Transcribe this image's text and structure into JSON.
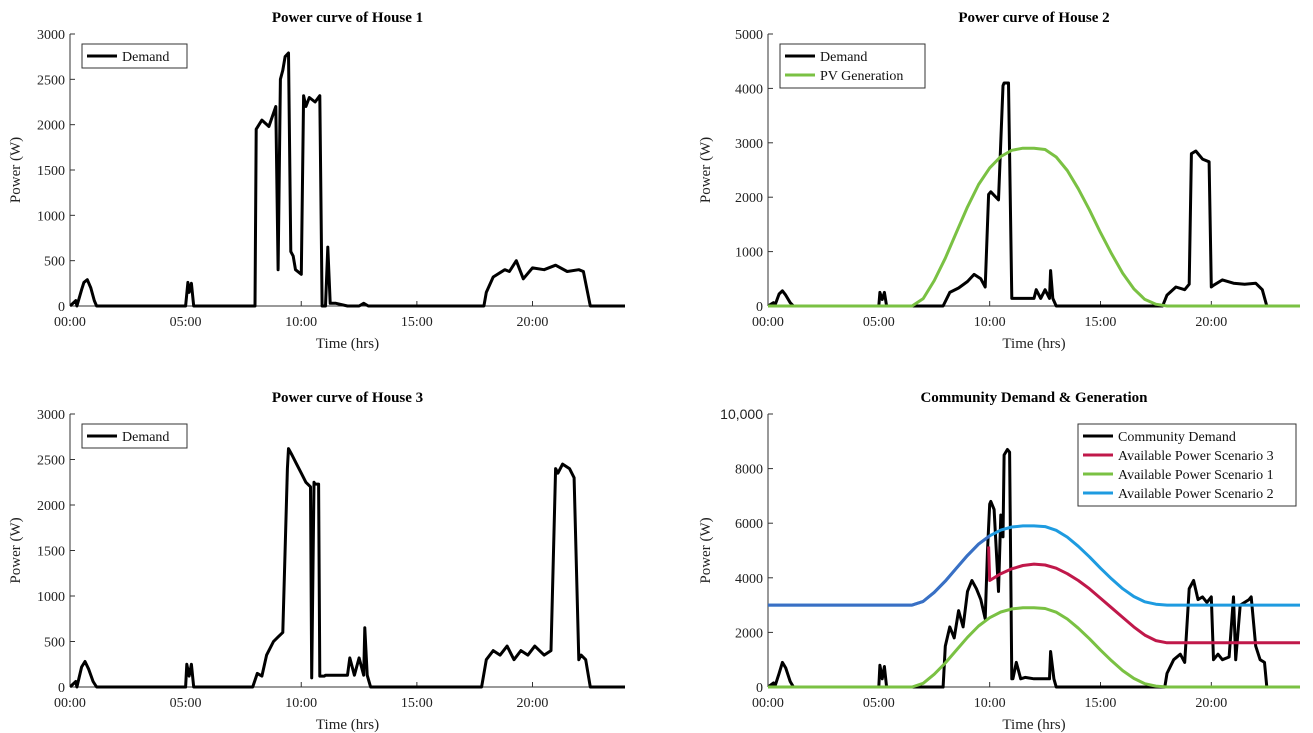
{
  "chart_data": [
    {
      "type": "line",
      "title": "Power curve of House 1",
      "xlabel": "Time (hrs)",
      "ylabel": "Power (W)",
      "xlim": [
        0,
        24
      ],
      "ylim": [
        0,
        3000
      ],
      "xticks": [
        0,
        5,
        10,
        15,
        20
      ],
      "xtick_labels": [
        "00:00",
        "05:00",
        "10:00",
        "15:00",
        "20:00"
      ],
      "yticks": [
        0,
        500,
        1000,
        1500,
        2000,
        2500,
        3000
      ],
      "ytick_labels": [
        "0",
        "500",
        "1000",
        "1500",
        "2000",
        "2500",
        "3000"
      ],
      "legend_position": "top-left",
      "series": [
        {
          "name": "Demand",
          "color": "#000000",
          "x": [
            0,
            0.25,
            0.3,
            0.5,
            0.6,
            0.75,
            0.9,
            1.05,
            1.15,
            5.0,
            5.1,
            5.15,
            5.25,
            5.35,
            5.4,
            8.0,
            8.05,
            8.3,
            8.6,
            8.9,
            9.0,
            9.1,
            9.2,
            9.3,
            9.45,
            9.55,
            9.65,
            9.75,
            10.0,
            10.1,
            10.2,
            10.35,
            10.6,
            10.8,
            10.9,
            11.05,
            11.15,
            11.25,
            11.35,
            11.5,
            12.0,
            12.5,
            12.7,
            12.9,
            17.9,
            18.0,
            18.3,
            18.8,
            19.0,
            19.3,
            19.6,
            20.0,
            20.5,
            21.0,
            21.5,
            22.0,
            22.2,
            22.5,
            24.0
          ],
          "y": [
            0,
            60,
            0,
            180,
            260,
            290,
            200,
            60,
            0,
            0,
            260,
            150,
            250,
            0,
            0,
            0,
            1950,
            2050,
            1980,
            2200,
            400,
            2500,
            2600,
            2750,
            2790,
            600,
            550,
            400,
            350,
            2320,
            2200,
            2300,
            2250,
            2320,
            0,
            0,
            650,
            30,
            30,
            30,
            0,
            0,
            30,
            0,
            0,
            150,
            320,
            400,
            380,
            500,
            300,
            420,
            400,
            450,
            380,
            400,
            380,
            0,
            0
          ]
        }
      ]
    },
    {
      "type": "line",
      "title": "Power curve of House 2",
      "xlabel": "Time (hrs)",
      "ylabel": "Power (W)",
      "xlim": [
        0,
        24
      ],
      "ylim": [
        0,
        5000
      ],
      "xticks": [
        0,
        5,
        10,
        15,
        20
      ],
      "xtick_labels": [
        "00:00",
        "05:00",
        "10:00",
        "15:00",
        "20:00"
      ],
      "yticks": [
        0,
        1000,
        2000,
        3000,
        4000,
        5000
      ],
      "ytick_labels": [
        "0",
        "1000",
        "2000",
        "3000",
        "4000",
        "5000"
      ],
      "legend_position": "top-left",
      "series": [
        {
          "name": "Demand",
          "color": "#000000",
          "x": [
            0,
            0.25,
            0.3,
            0.5,
            0.65,
            0.8,
            1.0,
            1.15,
            5.0,
            5.05,
            5.15,
            5.25,
            5.35,
            7.9,
            8.2,
            8.6,
            9.0,
            9.3,
            9.6,
            9.8,
            9.95,
            10.05,
            10.4,
            10.6,
            10.65,
            10.85,
            11.0,
            11.05,
            12.0,
            12.1,
            12.3,
            12.5,
            12.7,
            12.75,
            12.85,
            13.0,
            17.8,
            18.0,
            18.4,
            18.8,
            19.0,
            19.1,
            19.3,
            19.6,
            19.9,
            20.0,
            20.1,
            20.5,
            21.0,
            21.5,
            22.0,
            22.3,
            22.5,
            24.0
          ],
          "y": [
            0,
            60,
            0,
            220,
            280,
            200,
            60,
            0,
            0,
            250,
            120,
            250,
            0,
            0,
            250,
            330,
            450,
            580,
            500,
            350,
            2050,
            2100,
            1950,
            4050,
            4100,
            4100,
            140,
            140,
            140,
            300,
            140,
            300,
            140,
            650,
            140,
            0,
            0,
            200,
            350,
            300,
            400,
            2800,
            2850,
            2700,
            2650,
            350,
            380,
            480,
            420,
            400,
            420,
            300,
            0,
            0
          ]
        },
        {
          "name": "PV Generation",
          "color": "#7ac143",
          "x": [
            0,
            6.5,
            7.0,
            7.5,
            8.0,
            8.5,
            9.0,
            9.5,
            10.0,
            10.5,
            11.0,
            11.5,
            12.0,
            12.5,
            13.0,
            13.5,
            14.0,
            14.5,
            15.0,
            15.5,
            16.0,
            16.5,
            17.0,
            17.5,
            18.0,
            24.0
          ],
          "y": [
            0,
            0,
            136,
            469,
            879,
            1353,
            1822,
            2234,
            2539,
            2749,
            2862,
            2900,
            2900,
            2876,
            2739,
            2491,
            2154,
            1768,
            1350,
            959,
            601,
            316,
            121,
            33,
            0,
            0
          ]
        }
      ]
    },
    {
      "type": "line",
      "title": "Power curve of House 3",
      "xlabel": "Time (hrs)",
      "ylabel": "Power (W)",
      "xlim": [
        0,
        24
      ],
      "ylim": [
        0,
        3000
      ],
      "xticks": [
        0,
        5,
        10,
        15,
        20
      ],
      "xtick_labels": [
        "00:00",
        "05:00",
        "10:00",
        "15:00",
        "20:00"
      ],
      "yticks": [
        0,
        500,
        1000,
        1500,
        2000,
        2500,
        3000
      ],
      "ytick_labels": [
        "0",
        "500",
        "1000",
        "1500",
        "2000",
        "2500",
        "3000"
      ],
      "legend_position": "top-left",
      "series": [
        {
          "name": "Demand",
          "color": "#000000",
          "x": [
            0,
            0.25,
            0.3,
            0.5,
            0.65,
            0.8,
            1.0,
            1.15,
            5.0,
            5.05,
            5.15,
            5.25,
            5.35,
            7.9,
            8.1,
            8.3,
            8.5,
            8.8,
            9.0,
            9.2,
            9.4,
            9.45,
            9.6,
            9.8,
            10.0,
            10.2,
            10.4,
            10.45,
            10.55,
            10.6,
            10.75,
            10.8,
            11.0,
            11.05,
            12.0,
            12.1,
            12.3,
            12.5,
            12.7,
            12.75,
            12.85,
            13.0,
            17.8,
            18.0,
            18.3,
            18.6,
            18.9,
            19.2,
            19.5,
            19.8,
            20.1,
            20.5,
            20.8,
            21.0,
            21.1,
            21.3,
            21.6,
            21.8,
            22.0,
            22.1,
            22.3,
            22.5,
            23.0,
            24.0
          ],
          "y": [
            0,
            60,
            0,
            220,
            280,
            200,
            60,
            0,
            0,
            250,
            120,
            250,
            0,
            0,
            150,
            120,
            350,
            500,
            550,
            600,
            2400,
            2620,
            2550,
            2450,
            2350,
            2250,
            2200,
            100,
            2250,
            2230,
            2230,
            120,
            120,
            130,
            130,
            320,
            130,
            320,
            130,
            650,
            130,
            0,
            0,
            300,
            400,
            350,
            450,
            300,
            400,
            350,
            450,
            350,
            400,
            2400,
            2350,
            2450,
            2400,
            2300,
            300,
            350,
            300,
            0,
            0,
            0
          ]
        }
      ]
    },
    {
      "type": "line",
      "title": "Community Demand & Generation",
      "xlabel": "Time (hrs)",
      "ylabel": "Power (W)",
      "xlim": [
        0,
        24
      ],
      "ylim": [
        0,
        10000
      ],
      "xticks": [
        0,
        5,
        10,
        15,
        20
      ],
      "xtick_labels": [
        "00:00",
        "05:00",
        "10:00",
        "15:00",
        "20:00"
      ],
      "yticks": [
        0,
        2000,
        4000,
        6000,
        8000,
        10000
      ],
      "ytick_labels": [
        "0",
        "2000",
        "4000",
        "6000",
        "8000",
        "10,000"
      ],
      "legend_position": "top-right",
      "series": [
        {
          "name": "Community Demand",
          "color": "#000000",
          "x": [
            0,
            0.25,
            0.3,
            0.5,
            0.65,
            0.8,
            1.0,
            1.15,
            5.0,
            5.05,
            5.15,
            5.25,
            5.35,
            7.9,
            8.0,
            8.2,
            8.4,
            8.6,
            8.8,
            9.0,
            9.2,
            9.4,
            9.6,
            9.8,
            9.9,
            10.0,
            10.05,
            10.2,
            10.4,
            10.5,
            10.6,
            10.65,
            10.8,
            10.9,
            11.0,
            11.05,
            11.2,
            11.4,
            11.6,
            12.0,
            12.5,
            12.7,
            12.75,
            12.9,
            13.0,
            17.9,
            18.0,
            18.3,
            18.6,
            18.8,
            19.0,
            19.2,
            19.4,
            19.6,
            19.8,
            20.0,
            20.1,
            20.3,
            20.5,
            20.8,
            21.0,
            21.1,
            21.3,
            21.5,
            21.7,
            21.8,
            22.0,
            22.2,
            22.4,
            22.5,
            24.0
          ],
          "y": [
            0,
            150,
            0,
            500,
            900,
            700,
            200,
            0,
            0,
            800,
            300,
            750,
            0,
            0,
            1500,
            2200,
            1800,
            2800,
            2200,
            3500,
            3900,
            3600,
            3200,
            2500,
            5000,
            6700,
            6800,
            6500,
            3500,
            6300,
            5500,
            8500,
            8700,
            8600,
            300,
            300,
            900,
            300,
            350,
            300,
            300,
            300,
            1300,
            300,
            0,
            0,
            500,
            1000,
            1200,
            900,
            3600,
            3900,
            3200,
            3300,
            3100,
            3300,
            1000,
            1200,
            1000,
            1100,
            3300,
            1000,
            3000,
            3100,
            3200,
            3300,
            1500,
            1000,
            900,
            0,
            0
          ]
        },
        {
          "name": "Available Power Scenario 3",
          "color": "#c0184a",
          "x": [
            9.95,
            10.0,
            10.5,
            11.0,
            11.5,
            12.0,
            12.5,
            13.0,
            13.5,
            14.0,
            14.5,
            15.0,
            15.5,
            16.0,
            16.5,
            17.0,
            17.5,
            18.0,
            24.0
          ],
          "y": [
            5150,
            3900,
            4150,
            4330,
            4450,
            4500,
            4470,
            4350,
            4150,
            3900,
            3600,
            3250,
            2900,
            2550,
            2200,
            1900,
            1700,
            1620,
            1620
          ]
        },
        {
          "name": "Available Power Scenario 1",
          "color": "#7ac143",
          "x": [
            0,
            6.5,
            7.0,
            7.5,
            8.0,
            8.5,
            9.0,
            9.5,
            10.0,
            10.5,
            11.0,
            11.5,
            12.0,
            12.5,
            13.0,
            13.5,
            14.0,
            14.5,
            15.0,
            15.5,
            16.0,
            16.5,
            17.0,
            17.5,
            18.0,
            24.0
          ],
          "y": [
            0,
            0,
            136,
            469,
            879,
            1353,
            1822,
            2234,
            2539,
            2749,
            2862,
            2900,
            2900,
            2876,
            2739,
            2491,
            2154,
            1768,
            1350,
            959,
            601,
            316,
            121,
            33,
            0,
            0
          ]
        },
        {
          "name": "Available Power Scenario 2",
          "color": "#1e9be0",
          "x": [
            0,
            6.5,
            7.0,
            7.5,
            8.0,
            8.5,
            9.0,
            9.5,
            10.0,
            10.5,
            11.0,
            11.5,
            12.0,
            12.5,
            13.0,
            13.5,
            14.0,
            14.5,
            15.0,
            15.5,
            16.0,
            16.5,
            17.0,
            17.5,
            18.0,
            24.0
          ],
          "y": [
            3000,
            3000,
            3136,
            3469,
            3879,
            4353,
            4822,
            5234,
            5539,
            5749,
            5862,
            5900,
            5900,
            5876,
            5739,
            5491,
            5154,
            4768,
            4350,
            3959,
            3601,
            3316,
            3121,
            3033,
            3000,
            3000
          ]
        }
      ],
      "overlap_color_note": "",
      "overlap_color": "#3a6fc4"
    }
  ]
}
